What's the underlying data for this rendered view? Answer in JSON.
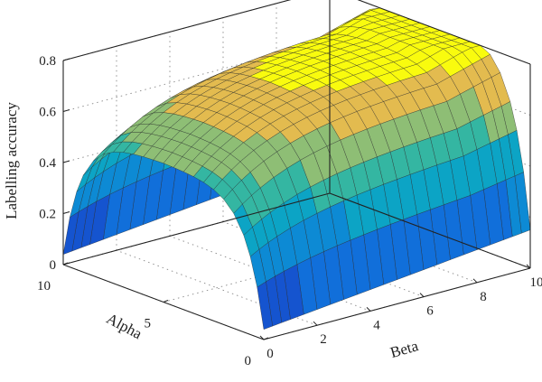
{
  "chart_data": {
    "type": "surface",
    "title": "",
    "xlabel": "Beta",
    "ylabel": "Alpha",
    "zlabel": "Labelling accuracy",
    "xlim": [
      0,
      10
    ],
    "ylim": [
      0,
      10
    ],
    "zlim": [
      0,
      0.8
    ],
    "x_ticks": [
      "0",
      "2",
      "4",
      "6",
      "8",
      "10"
    ],
    "y_ticks": [
      "0",
      "5",
      "10"
    ],
    "z_ticks": [
      "0",
      "0.2",
      "0.4",
      "0.6",
      "0.8"
    ],
    "grid": true,
    "colormap": "parula",
    "surface": {
      "x": [
        0,
        0.33,
        0.67,
        1,
        1.5,
        2,
        2.5,
        3,
        3.5,
        4,
        4.5,
        5,
        5.5,
        6,
        6.5,
        7,
        7.5,
        8,
        8.5,
        9,
        9.33,
        9.67,
        10
      ],
      "y": [
        0,
        0.33,
        0.67,
        1,
        1.5,
        2,
        2.5,
        3,
        3.5,
        4,
        4.5,
        5,
        5.5,
        6,
        6.5,
        7,
        7.5,
        8,
        8.5,
        9,
        9.33,
        9.67,
        10
      ],
      "z_description_points": [
        {
          "beta": 0,
          "alpha": 10,
          "accuracy": 0.05
        },
        {
          "beta": 0,
          "alpha": 5,
          "accuracy": 0.5
        },
        {
          "beta": 0,
          "alpha": 0,
          "accuracy": 0.05
        },
        {
          "beta": 5,
          "alpha": 5,
          "accuracy": 0.72
        },
        {
          "beta": 10,
          "alpha": 5,
          "accuracy": 0.8
        },
        {
          "beta": 10,
          "alpha": 0,
          "accuracy": 0.15
        },
        {
          "beta": 10,
          "alpha": 10,
          "accuracy": 0.15
        }
      ]
    }
  }
}
